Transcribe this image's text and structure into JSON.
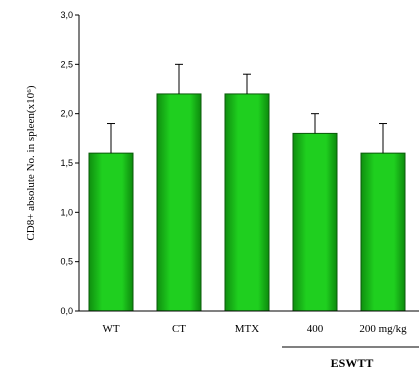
{
  "chart_data": {
    "type": "bar",
    "ylabel": "CD8+ absolute No. in spleen(x10⁶)",
    "ylim": [
      0,
      3.0
    ],
    "y_ticks": [
      "0,0",
      "0,5",
      "1,0",
      "1,5",
      "2,0",
      "2,5",
      "3,0"
    ],
    "categories": [
      "WT",
      "CT",
      "MTX",
      "400",
      "200 mg/kg"
    ],
    "values": [
      1.6,
      2.2,
      2.2,
      1.8,
      1.6
    ],
    "errors": [
      0.3,
      0.3,
      0.2,
      0.2,
      0.3
    ],
    "group_label": "ESWTT",
    "bar_color": "#1fcf1f",
    "bar_edge_color": "#0a5a0a"
  }
}
